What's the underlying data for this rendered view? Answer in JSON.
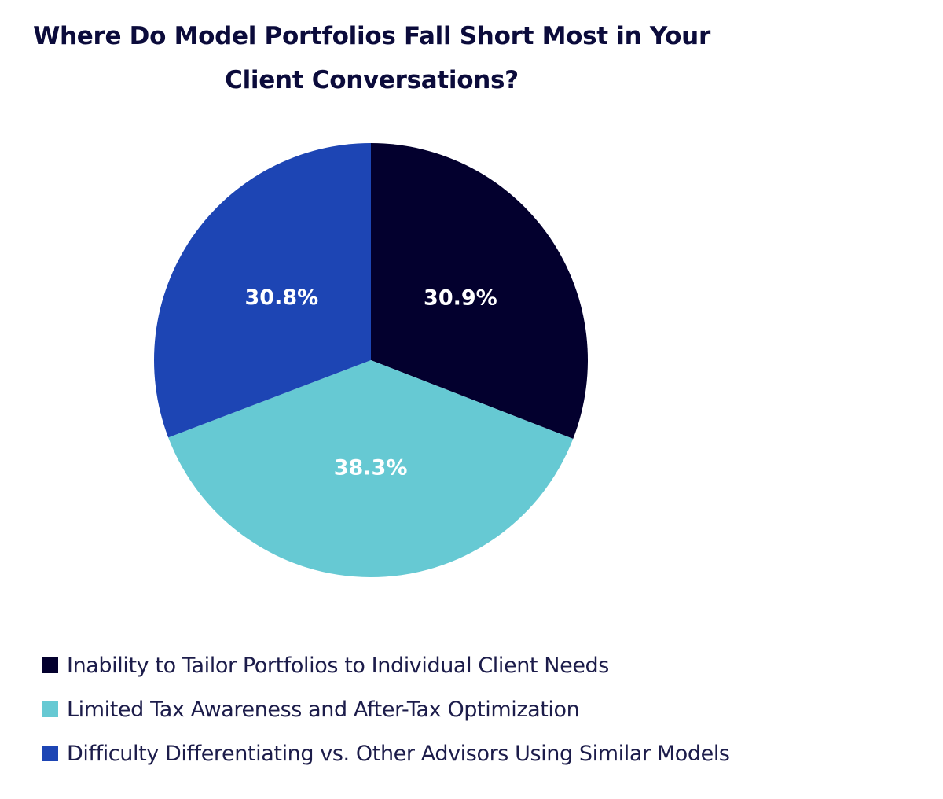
{
  "chart_data": {
    "type": "pie",
    "title": "Where Do Model Portfolios Fall Short Most in Your Client Conversations?",
    "legend_position": "bottom-left",
    "series": [
      {
        "name": "Inability to Tailor Portfolios to Individual Client Needs",
        "value": 30.9,
        "label": "30.9%",
        "color": "#03002e"
      },
      {
        "name": "Limited Tax Awareness and After-Tax Optimization",
        "value": 38.3,
        "label": "38.3%",
        "color": "#66c9d3"
      },
      {
        "name": "Difficulty Differentiating vs. Other Advisors Using Similar Models",
        "value": 30.8,
        "label": "30.8%",
        "color": "#1d45b4"
      }
    ]
  }
}
